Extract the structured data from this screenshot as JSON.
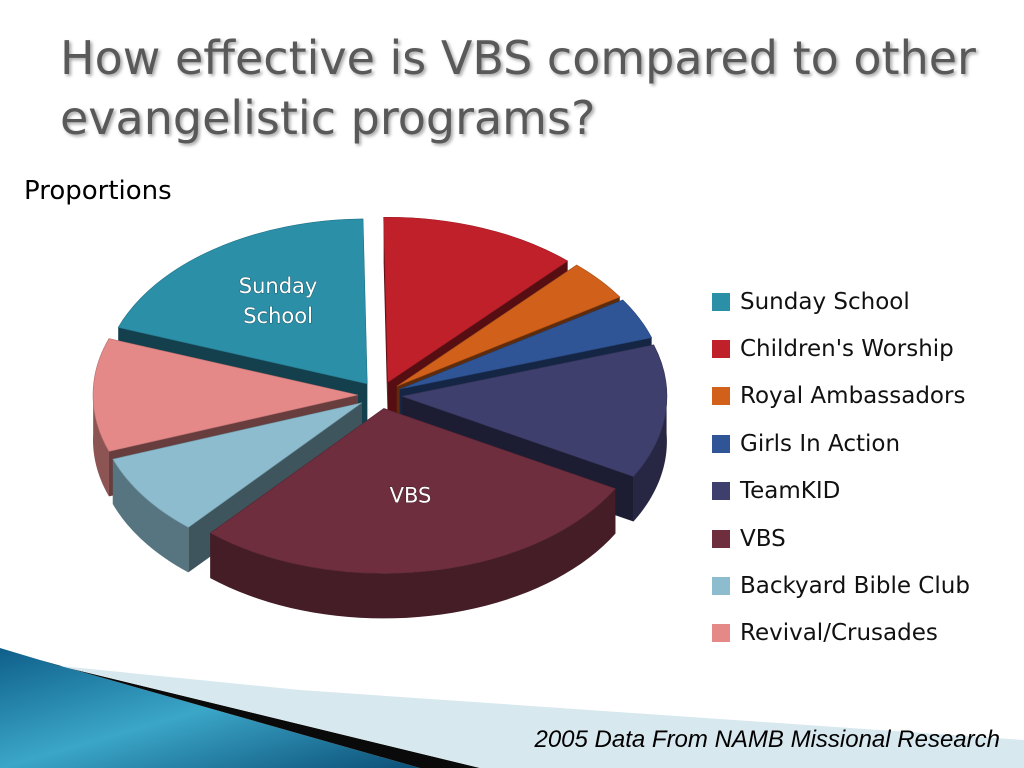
{
  "slide": {
    "title": "How effective is VBS compared to other evangelistic programs?",
    "source": "2005 Data From NAMB Missional Research"
  },
  "chart_data": {
    "type": "pie",
    "title": "Proportions",
    "legend_position": "right",
    "categories": [
      "Sunday School",
      "Children's Worship",
      "Royal Ambassadors",
      "Girls In Action",
      "TeamKID",
      "VBS",
      "Backyard Bible Club",
      "Revival/Crusades"
    ],
    "values": [
      19,
      12,
      4,
      4,
      13,
      28,
      8,
      11
    ],
    "colors": [
      "#2B8FA8",
      "#C0202A",
      "#D0601A",
      "#2F5597",
      "#3F3F6E",
      "#6E2E3E",
      "#8CBCCE",
      "#E48888"
    ],
    "slice_labels": [
      {
        "category": "Sunday School",
        "lines": [
          "Sunday",
          "School"
        ]
      },
      {
        "category": "VBS",
        "lines": [
          "VBS"
        ]
      }
    ]
  }
}
